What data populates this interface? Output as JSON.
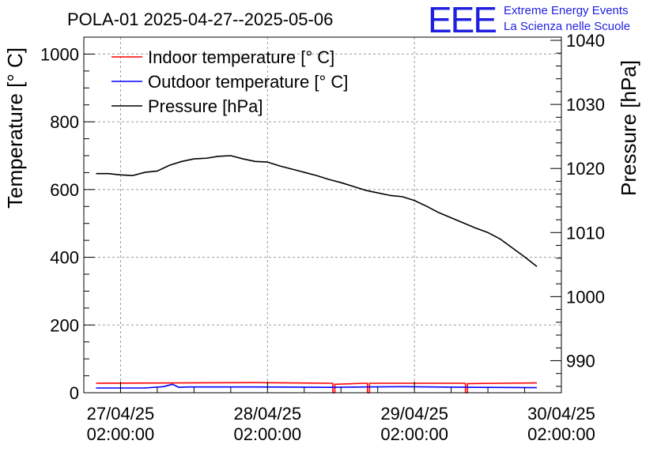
{
  "header": {
    "title": "POLA-01 2025-04-27--2025-05-06",
    "logo_mark": "EEE",
    "logo_line1": "Extreme Energy Events",
    "logo_line2": "La Scienza nelle Scuole",
    "logo_color": "#1f1fe0"
  },
  "chart_data": {
    "type": "line",
    "title": "POLA-01 2025-04-27--2025-05-06",
    "xlabel": "",
    "ylabel": "Temperature [° C]",
    "y2label": "Pressure [hPa]",
    "x_is_time": true,
    "xlim": [
      "2025-04-26 20:00",
      "2025-04-30 02:00"
    ],
    "ylim": [
      0,
      1050
    ],
    "y2lim": [
      985,
      1040.5
    ],
    "x_ticks": [
      "27/04/25|02:00:00",
      "28/04/25|02:00:00",
      "29/04/25|02:00:00",
      "30/04/25|02:00:00"
    ],
    "x_tick_values": [
      "2025-04-27 02:00",
      "2025-04-28 02:00",
      "2025-04-29 02:00",
      "2025-04-30 02:00"
    ],
    "y_ticks": [
      0,
      200,
      400,
      600,
      800,
      1000
    ],
    "y2_ticks": [
      990,
      1000,
      1010,
      1020,
      1030,
      1040
    ],
    "grid": true,
    "legend_position": "top-left",
    "series": [
      {
        "name": "Indoor temperature [° C]",
        "axis": "left",
        "color": "#ff0000",
        "x": [
          "2025-04-26 22:00",
          "2025-04-27 12:00",
          "2025-04-28 00:00",
          "2025-04-28 12:00",
          "2025-04-28 12:40",
          "2025-04-28 12:40",
          "2025-04-28 13:00",
          "2025-04-28 13:00",
          "2025-04-28 18:00",
          "2025-04-28 18:20",
          "2025-04-28 18:20",
          "2025-04-28 18:40",
          "2025-04-28 18:40",
          "2025-04-29 10:00",
          "2025-04-29 10:20",
          "2025-04-29 10:20",
          "2025-04-29 10:40",
          "2025-04-29 10:40",
          "2025-04-29 22:00"
        ],
        "values": [
          28,
          29,
          30,
          28,
          28,
          0,
          0,
          25,
          28,
          28,
          0,
          0,
          28,
          28,
          28,
          0,
          0,
          27,
          29
        ]
      },
      {
        "name": "Outdoor temperature [° C]",
        "axis": "left",
        "color": "#0000ff",
        "x": [
          "2025-04-26 22:00",
          "2025-04-27 06:00",
          "2025-04-27 09:00",
          "2025-04-27 10:30",
          "2025-04-27 11:30",
          "2025-04-27 13:00",
          "2025-04-28 00:00",
          "2025-04-28 12:00",
          "2025-04-28 18:00",
          "2025-04-29 00:00",
          "2025-04-29 12:00",
          "2025-04-29 22:00"
        ],
        "values": [
          14,
          14,
          18,
          25,
          16,
          17,
          17,
          16,
          17,
          18,
          16,
          15
        ]
      },
      {
        "name": "Pressure [hPa]",
        "axis": "right",
        "color": "#000000",
        "x": [
          "2025-04-26 22:00",
          "2025-04-27 00:00",
          "2025-04-27 02:00",
          "2025-04-27 04:00",
          "2025-04-27 06:00",
          "2025-04-27 08:00",
          "2025-04-27 10:00",
          "2025-04-27 12:00",
          "2025-04-27 14:00",
          "2025-04-27 16:00",
          "2025-04-27 18:00",
          "2025-04-27 20:00",
          "2025-04-27 22:00",
          "2025-04-28 00:00",
          "2025-04-28 02:00",
          "2025-04-28 04:00",
          "2025-04-28 06:00",
          "2025-04-28 08:00",
          "2025-04-28 10:00",
          "2025-04-28 12:00",
          "2025-04-28 14:00",
          "2025-04-28 16:00",
          "2025-04-28 18:00",
          "2025-04-28 20:00",
          "2025-04-28 22:00",
          "2025-04-29 00:00",
          "2025-04-29 02:00",
          "2025-04-29 04:00",
          "2025-04-29 06:00",
          "2025-04-29 08:00",
          "2025-04-29 10:00",
          "2025-04-29 12:00",
          "2025-04-29 14:00",
          "2025-04-29 16:00",
          "2025-04-29 18:00",
          "2025-04-29 20:00",
          "2025-04-29 22:00"
        ],
        "values": [
          1019.2,
          1019.2,
          1019.0,
          1018.9,
          1019.4,
          1019.6,
          1020.5,
          1021.1,
          1021.5,
          1021.6,
          1021.9,
          1022.0,
          1021.5,
          1021.1,
          1021.0,
          1020.4,
          1019.9,
          1019.4,
          1018.9,
          1018.3,
          1017.8,
          1017.2,
          1016.6,
          1016.2,
          1015.8,
          1015.6,
          1015.0,
          1014.1,
          1013.1,
          1012.3,
          1011.5,
          1010.7,
          1010.0,
          1009.0,
          1007.6,
          1006.2,
          1004.7
        ]
      }
    ]
  }
}
